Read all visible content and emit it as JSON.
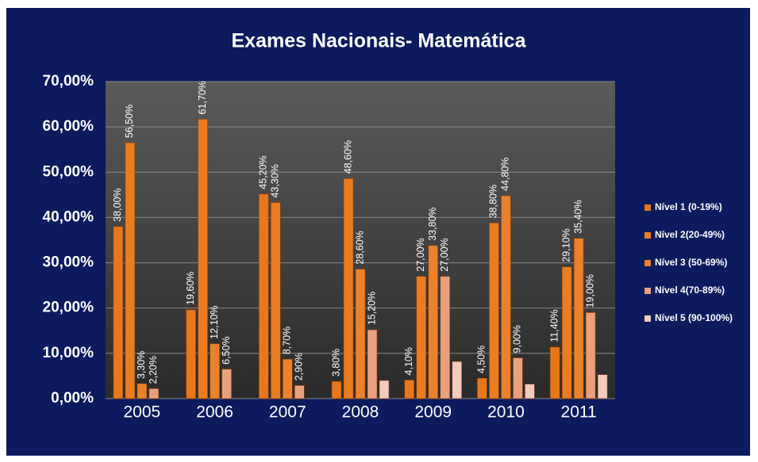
{
  "chart_data": {
    "type": "bar",
    "title": "Exames Nacionais- Matemática",
    "categories": [
      "2005",
      "2006",
      "2007",
      "2008",
      "2009",
      "2010",
      "2011"
    ],
    "series": [
      {
        "name": "Nível 1 (0-19%)",
        "color": "#e8771c",
        "values": [
          38.0,
          19.6,
          45.2,
          3.8,
          4.1,
          4.5,
          11.4
        ],
        "value_labels": [
          "38,00%",
          "19,60%",
          "45,20%",
          "3,80%",
          "4,10%",
          "4,50%",
          "11,40%"
        ]
      },
      {
        "name": "Nível 2(20-49%)",
        "color": "#ea7d22",
        "values": [
          56.5,
          61.7,
          43.3,
          48.6,
          27.0,
          38.8,
          29.1
        ],
        "value_labels": [
          "56,50%",
          "61,70%",
          "43,30%",
          "48,60%",
          "27,00%",
          "38,80%",
          "29,10%"
        ]
      },
      {
        "name": "Nível 3 (50-69%)",
        "color": "#e9822a",
        "values": [
          3.3,
          12.1,
          8.7,
          28.6,
          33.8,
          44.8,
          35.4
        ],
        "value_labels": [
          "3,30%",
          "12,10%",
          "8,70%",
          "28,60%",
          "33,80%",
          "44,80%",
          "35,40%"
        ]
      },
      {
        "name": "Nível 4(70-89%)",
        "color": "#e8a07e",
        "values": [
          2.2,
          6.5,
          2.9,
          15.2,
          27.0,
          9.0,
          19.0
        ],
        "value_labels": [
          "2,20%",
          "6,50%",
          "2,90%",
          "15,20%",
          "27,00%",
          "9,00%",
          "19,00%"
        ]
      },
      {
        "name": "Nível 5 (90-100%)",
        "color": "#f1cbbd",
        "values": [
          null,
          null,
          null,
          4.0,
          8.2,
          3.2,
          5.3
        ]
      }
    ],
    "ylim": [
      0,
      70
    ],
    "yticks": [
      {
        "value": 0,
        "label": "0,00%"
      },
      {
        "value": 10,
        "label": "10,00%"
      },
      {
        "value": 20,
        "label": "20,00%"
      },
      {
        "value": 30,
        "label": "30,00%"
      },
      {
        "value": 40,
        "label": "40,00%"
      },
      {
        "value": 50,
        "label": "50,00%"
      },
      {
        "value": 60,
        "label": "60,00%"
      },
      {
        "value": 70,
        "label": "70,00%"
      }
    ],
    "grid": true,
    "legend": "right"
  }
}
